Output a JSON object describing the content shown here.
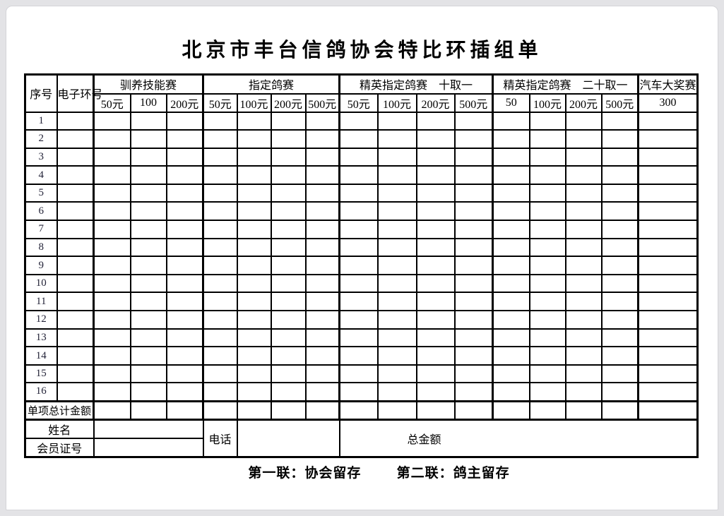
{
  "title": "北京市丰台信鸽协会特比环插组单",
  "table": {
    "corner": {
      "serial": "序号",
      "ring": "电子环号"
    },
    "sections": [
      {
        "label": "驯养技能赛",
        "prices": [
          "50元",
          "100",
          "200元"
        ]
      },
      {
        "label": "指定鸽赛",
        "prices": [
          "50元",
          "100元",
          "200元",
          "500元"
        ]
      },
      {
        "label": "精英指定鸽赛　十取一",
        "prices": [
          "50元",
          "100元",
          "200元",
          "500元"
        ]
      },
      {
        "label": "精英指定鸽赛　二十取一",
        "prices": [
          "50",
          "100元",
          "200元",
          "500元"
        ]
      },
      {
        "label": "汽车大奖赛",
        "prices": [
          "300"
        ]
      }
    ],
    "row_serials": [
      "1",
      "2",
      "3",
      "4",
      "5",
      "6",
      "7",
      "8",
      "9",
      "10",
      "11",
      "12",
      "13",
      "14",
      "15",
      "16"
    ],
    "totals_label": "单项总计金额"
  },
  "signature": {
    "name_label": "姓名",
    "member_id_label": "会员证号",
    "phone_label": "电话",
    "total_label": "总金额"
  },
  "footer": {
    "copy_1": "第一联：协会留存",
    "copy_2": "第二联：鸽主留存"
  },
  "colors": {
    "border": "#000000",
    "page_bg": "#ffffff",
    "canvas_bg": "#e3e3e6"
  }
}
